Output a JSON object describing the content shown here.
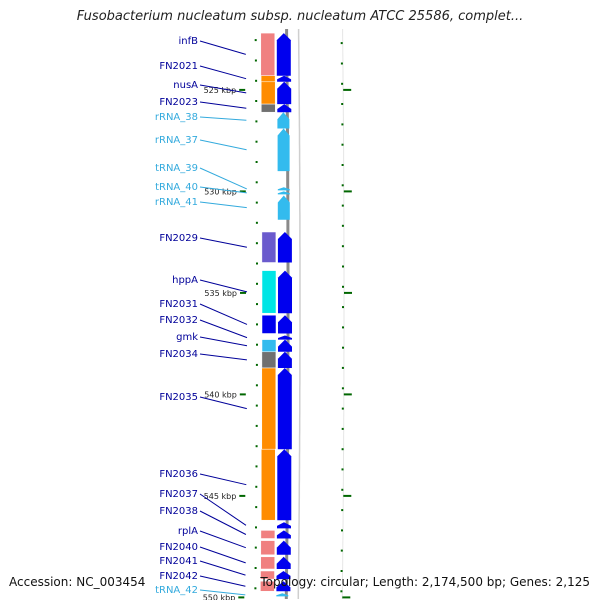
{
  "header": {
    "title": "Fusobacterium nucleatum subsp. nucleatum ATCC 25586, complet..."
  },
  "footer": {
    "accession": "Accession: NC_003454",
    "summary": "Topology: circular; Length: 2,174,500 bp; Genes: 2,125"
  },
  "colors": {
    "gene_arrow": "#0000ee",
    "rna_arrow": "#33bbee",
    "gene_label": "#000099",
    "rna_label": "#33aadd",
    "tick_mark": "#006600"
  },
  "scale": {
    "ticks": [
      {
        "label": "525 kbp",
        "kbp": 525
      },
      {
        "label": "530 kbp",
        "kbp": 530
      },
      {
        "label": "535 kbp",
        "kbp": 535
      },
      {
        "label": "540 kbp",
        "kbp": 540
      },
      {
        "label": "545 kbp",
        "kbp": 545
      },
      {
        "label": "550 kbp",
        "kbp": 550
      }
    ]
  },
  "features": [
    {
      "label": "infB",
      "type": "gene",
      "start_kbp": 522.2,
      "end_kbp": 524.3,
      "category_color": "#f08080",
      "strand": "+"
    },
    {
      "label": "FN2021",
      "type": "gene",
      "start_kbp": 524.3,
      "end_kbp": 524.6,
      "category_color": "#ff8c00",
      "strand": "+"
    },
    {
      "label": "nusA",
      "type": "gene",
      "start_kbp": 524.6,
      "end_kbp": 525.7,
      "category_color": "#ff8c00",
      "strand": "+"
    },
    {
      "label": "FN2023",
      "type": "gene",
      "start_kbp": 525.7,
      "end_kbp": 526.1,
      "category_color": "#707070",
      "strand": "+"
    },
    {
      "label": "rRNA_38",
      "type": "rna",
      "start_kbp": 526.1,
      "end_kbp": 526.9,
      "category_color": "",
      "strand": "+"
    },
    {
      "label": "rRNA_37",
      "type": "rna",
      "start_kbp": 526.9,
      "end_kbp": 529.0,
      "category_color": "",
      "strand": "+"
    },
    {
      "label": "tRNA_39",
      "type": "rna",
      "start_kbp": 529.8,
      "end_kbp": 529.95,
      "category_color": "",
      "strand": "+"
    },
    {
      "label": "tRNA_40",
      "type": "rna",
      "start_kbp": 530.0,
      "end_kbp": 530.15,
      "category_color": "",
      "strand": "+"
    },
    {
      "label": "rRNA_41",
      "type": "rna",
      "start_kbp": 530.2,
      "end_kbp": 531.4,
      "category_color": "",
      "strand": "+"
    },
    {
      "label": "FN2029",
      "type": "gene",
      "start_kbp": 532.0,
      "end_kbp": 533.5,
      "category_color": "#6a5acd",
      "strand": "+"
    },
    {
      "label": "hppA",
      "type": "gene",
      "start_kbp": 533.9,
      "end_kbp": 536.0,
      "category_color": "#00e5e5",
      "strand": "+"
    },
    {
      "label": "FN2031",
      "type": "gene",
      "start_kbp": 536.1,
      "end_kbp": 537.0,
      "category_color": "#0000ee",
      "strand": "+"
    },
    {
      "label": "FN2032",
      "type": "gene",
      "start_kbp": 537.1,
      "end_kbp": 537.3,
      "category_color": "#ffffff",
      "strand": "+"
    },
    {
      "label": "gmk",
      "type": "gene",
      "start_kbp": 537.3,
      "end_kbp": 537.9,
      "category_color": "#33bbee",
      "strand": "+"
    },
    {
      "label": "FN2034",
      "type": "gene",
      "start_kbp": 537.9,
      "end_kbp": 538.7,
      "category_color": "#707070",
      "strand": "+"
    },
    {
      "label": "FN2035",
      "type": "gene",
      "start_kbp": 538.7,
      "end_kbp": 542.7,
      "category_color": "#ff8c00",
      "strand": "+"
    },
    {
      "label": "FN2036",
      "type": "gene",
      "start_kbp": 542.7,
      "end_kbp": 546.2,
      "category_color": "#ff8c00",
      "strand": "+"
    },
    {
      "label": "FN2037",
      "type": "gene",
      "start_kbp": 546.3,
      "end_kbp": 546.6,
      "category_color": "#ffffff",
      "strand": "+"
    },
    {
      "label": "FN2038",
      "type": "gene",
      "start_kbp": 546.7,
      "end_kbp": 547.1,
      "category_color": "#f08080",
      "strand": "+"
    },
    {
      "label": "rplA",
      "type": "gene",
      "start_kbp": 547.2,
      "end_kbp": 547.9,
      "category_color": "#f08080",
      "strand": "+"
    },
    {
      "label": "FN2040",
      "type": "gene",
      "start_kbp": 548.0,
      "end_kbp": 548.6,
      "category_color": "#f08080",
      "strand": "+"
    },
    {
      "label": "FN2041",
      "type": "gene",
      "start_kbp": 548.7,
      "end_kbp": 549.1,
      "category_color": "#f08080",
      "strand": "+"
    },
    {
      "label": "FN2042",
      "type": "gene",
      "start_kbp": 549.2,
      "end_kbp": 549.7,
      "category_color": "#f08080",
      "strand": "+"
    },
    {
      "label": "tRNA_42",
      "type": "rna",
      "start_kbp": 549.8,
      "end_kbp": 549.95,
      "category_color": "",
      "strand": "+"
    }
  ]
}
